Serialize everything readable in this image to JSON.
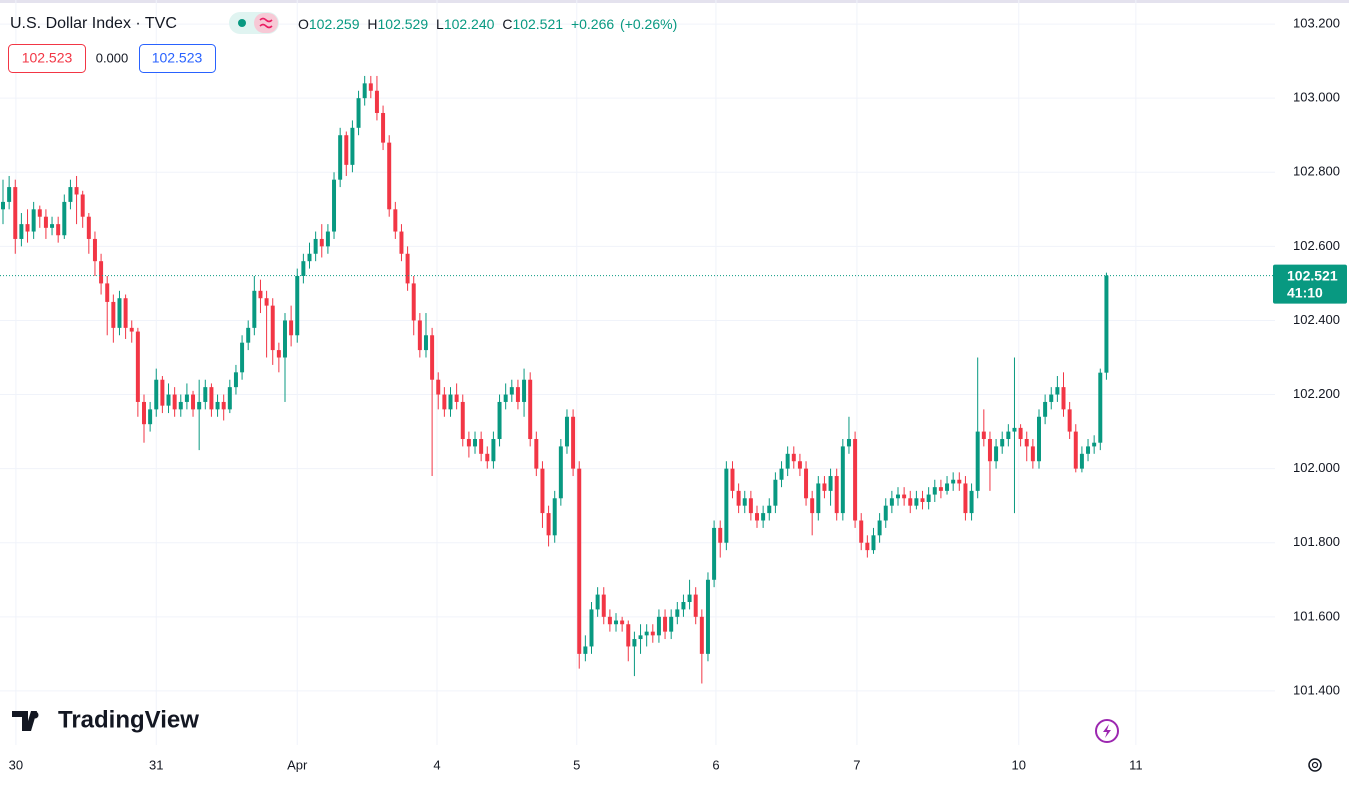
{
  "header": {
    "symbol": "U.S. Dollar Index · TVC",
    "ohlc_labels": [
      "O",
      "H",
      "L",
      "C"
    ],
    "ohlc_values": [
      "102.259",
      "102.529",
      "102.240",
      "102.521"
    ],
    "change": "+0.266",
    "change_pct": "(+0.26%)",
    "bid": "102.523",
    "spread": "0.000",
    "ask": "102.523",
    "countdown": "41:10",
    "logo": "TradingView"
  },
  "chart_data": {
    "type": "candlestick",
    "up_color": "#089981",
    "down_color": "#f23645",
    "grid": true,
    "ylim": [
      101.254,
      103.265
    ],
    "xlim": [
      -0.49,
      207.5
    ],
    "yticks": [
      {
        "value": 101.4,
        "label": "101.400"
      },
      {
        "value": 101.6,
        "label": "101.600"
      },
      {
        "value": 101.8,
        "label": "101.800"
      },
      {
        "value": 102.0,
        "label": "102.000"
      },
      {
        "value": 102.2,
        "label": "102.200"
      },
      {
        "value": 102.4,
        "label": "102.400"
      },
      {
        "value": 102.6,
        "label": "102.600"
      },
      {
        "value": 102.8,
        "label": "102.800"
      },
      {
        "value": 103.0,
        "label": "103.000"
      },
      {
        "value": 103.2,
        "label": "103.200"
      }
    ],
    "xticks": [
      {
        "value": 2.1,
        "label": "30"
      },
      {
        "value": 25,
        "label": "31"
      },
      {
        "value": 48,
        "label": "Apr"
      },
      {
        "value": 70.8,
        "label": "4"
      },
      {
        "value": 93.6,
        "label": "5"
      },
      {
        "value": 116.3,
        "label": "6"
      },
      {
        "value": 139.3,
        "label": "7"
      },
      {
        "value": 165.7,
        "label": "10"
      },
      {
        "value": 184.8,
        "label": "11"
      }
    ],
    "open": [
      102.7,
      102.72,
      102.76,
      102.62,
      102.66,
      102.64,
      102.7,
      102.68,
      102.65,
      102.66,
      102.63,
      102.72,
      102.76,
      102.74,
      102.68,
      102.62,
      102.56,
      102.5,
      102.45,
      102.38,
      102.46,
      102.38,
      102.37,
      102.18,
      102.12,
      102.16,
      102.24,
      102.17,
      102.2,
      102.16,
      102.18,
      102.2,
      102.16,
      102.18,
      102.22,
      102.16,
      102.18,
      102.16,
      102.22,
      102.26,
      102.34,
      102.38,
      102.48,
      102.46,
      102.44,
      102.32,
      102.3,
      102.4,
      102.36,
      102.52,
      102.56,
      102.58,
      102.62,
      102.6,
      102.64,
      102.78,
      102.9,
      102.82,
      102.92,
      103.0,
      103.04,
      103.02,
      102.96,
      102.88,
      102.7,
      102.64,
      102.58,
      102.5,
      102.4,
      102.32,
      102.36,
      102.24,
      102.2,
      102.16,
      102.2,
      102.18,
      102.08,
      102.06,
      102.08,
      102.04,
      102.02,
      102.08,
      102.18,
      102.2,
      102.22,
      102.18,
      102.24,
      102.08,
      102.0,
      101.88,
      101.82,
      101.92,
      102.06,
      102.14,
      102.0,
      101.5,
      101.52,
      101.62,
      101.66,
      101.6,
      101.58,
      101.59,
      101.58,
      101.52,
      101.54,
      101.55,
      101.56,
      101.55,
      101.6,
      101.56,
      101.6,
      101.62,
      101.64,
      101.66,
      101.6,
      101.5,
      101.7,
      101.84,
      101.8,
      102.0,
      101.94,
      101.9,
      101.92,
      101.88,
      101.86,
      101.88,
      101.9,
      101.97,
      102.0,
      102.04,
      102.02,
      102.0,
      101.92,
      101.88,
      101.96,
      101.94,
      101.98,
      101.88,
      102.06,
      102.08,
      101.86,
      101.8,
      101.78,
      101.82,
      101.86,
      101.9,
      101.92,
      101.93,
      101.92,
      101.9,
      101.92,
      101.91,
      101.93,
      101.95,
      101.94,
      101.96,
      101.97,
      101.96,
      101.88,
      101.94,
      102.1,
      102.08,
      102.02,
      102.06,
      102.08,
      102.1,
      102.11,
      102.08,
      102.06,
      102.02,
      102.14,
      102.18,
      102.2,
      102.22,
      102.16,
      102.1,
      102.0,
      102.04,
      102.06,
      102.07,
      102.259
    ],
    "high": [
      102.78,
      102.79,
      102.78,
      102.69,
      102.7,
      102.72,
      102.71,
      102.7,
      102.68,
      102.68,
      102.74,
      102.78,
      102.79,
      102.75,
      102.69,
      102.64,
      102.58,
      102.52,
      102.47,
      102.48,
      102.47,
      102.4,
      102.38,
      102.2,
      102.18,
      102.27,
      102.25,
      102.23,
      102.22,
      102.2,
      102.23,
      102.21,
      102.24,
      102.24,
      102.23,
      102.2,
      102.2,
      102.24,
      102.28,
      102.36,
      102.4,
      102.52,
      102.51,
      102.48,
      102.46,
      102.34,
      102.42,
      102.44,
      102.54,
      102.58,
      102.61,
      102.64,
      102.66,
      102.66,
      102.8,
      102.92,
      102.91,
      102.94,
      103.02,
      103.06,
      103.06,
      103.06,
      102.98,
      102.9,
      102.72,
      102.66,
      102.6,
      102.52,
      102.42,
      102.42,
      102.38,
      102.26,
      102.22,
      102.22,
      102.23,
      102.2,
      102.1,
      102.1,
      102.1,
      102.06,
      102.1,
      102.2,
      102.23,
      102.24,
      102.24,
      102.27,
      102.26,
      102.1,
      102.02,
      101.9,
      101.94,
      102.08,
      102.16,
      102.16,
      102.02,
      101.55,
      101.64,
      101.68,
      101.68,
      101.62,
      101.61,
      101.6,
      101.59,
      101.56,
      101.58,
      101.58,
      101.58,
      101.62,
      101.62,
      101.62,
      101.64,
      101.66,
      101.7,
      101.68,
      101.62,
      101.72,
      101.86,
      101.86,
      102.02,
      102.02,
      101.96,
      101.94,
      101.94,
      101.9,
      101.9,
      101.92,
      101.99,
      102.02,
      102.06,
      102.06,
      102.04,
      102.02,
      101.94,
      101.98,
      101.98,
      102.0,
      102.0,
      102.08,
      102.14,
      102.1,
      101.88,
      101.82,
      101.84,
      101.88,
      101.92,
      101.94,
      101.95,
      101.95,
      101.94,
      101.94,
      101.94,
      101.95,
      101.97,
      101.97,
      101.98,
      101.99,
      101.99,
      101.98,
      101.96,
      102.3,
      102.16,
      102.1,
      102.08,
      102.1,
      102.12,
      102.3,
      102.12,
      102.1,
      102.08,
      102.16,
      102.2,
      102.22,
      102.25,
      102.26,
      102.18,
      102.12,
      102.06,
      102.08,
      102.09,
      102.27,
      102.529
    ],
    "low": [
      102.66,
      102.7,
      102.58,
      102.6,
      102.61,
      102.62,
      102.65,
      102.62,
      102.63,
      102.61,
      102.62,
      102.7,
      102.66,
      102.65,
      102.58,
      102.52,
      102.47,
      102.36,
      102.34,
      102.36,
      102.35,
      102.34,
      102.14,
      102.07,
      102.1,
      102.14,
      102.15,
      102.15,
      102.14,
      102.14,
      102.16,
      102.14,
      102.05,
      102.16,
      102.14,
      102.14,
      102.13,
      102.15,
      102.2,
      102.24,
      102.32,
      102.36,
      102.42,
      102.3,
      102.28,
      102.26,
      102.18,
      102.33,
      102.34,
      102.5,
      102.54,
      102.56,
      102.57,
      102.58,
      102.62,
      102.76,
      102.79,
      102.8,
      102.9,
      102.98,
      103.0,
      102.94,
      102.86,
      102.68,
      102.62,
      102.56,
      102.48,
      102.36,
      102.3,
      102.3,
      101.98,
      102.16,
      102.14,
      102.14,
      102.16,
      102.06,
      102.03,
      102.04,
      102.02,
      102.0,
      102.0,
      102.06,
      102.16,
      102.18,
      102.16,
      102.14,
      102.06,
      101.98,
      101.84,
      101.79,
      101.8,
      101.9,
      102.04,
      101.98,
      101.46,
      101.48,
      101.5,
      101.6,
      101.58,
      101.56,
      101.56,
      101.56,
      101.48,
      101.44,
      101.5,
      101.52,
      101.53,
      101.53,
      101.54,
      101.54,
      101.58,
      101.6,
      101.62,
      101.58,
      101.42,
      101.48,
      101.68,
      101.76,
      101.78,
      101.92,
      101.88,
      101.88,
      101.86,
      101.84,
      101.84,
      101.86,
      101.88,
      101.95,
      101.98,
      102.0,
      101.98,
      101.9,
      101.82,
      101.86,
      101.92,
      101.9,
      101.86,
      101.86,
      102.04,
      101.84,
      101.78,
      101.76,
      101.77,
      101.8,
      101.84,
      101.88,
      101.9,
      101.9,
      101.88,
      101.89,
      101.89,
      101.89,
      101.91,
      101.92,
      101.93,
      101.94,
      101.94,
      101.86,
      101.86,
      101.92,
      102.06,
      101.94,
      102.0,
      102.04,
      102.06,
      101.88,
      102.06,
      102.02,
      102.0,
      102.0,
      102.12,
      102.16,
      102.18,
      102.14,
      102.08,
      101.99,
      101.99,
      102.02,
      102.04,
      102.05,
      102.24
    ],
    "close": [
      102.72,
      102.76,
      102.62,
      102.66,
      102.64,
      102.7,
      102.68,
      102.65,
      102.66,
      102.63,
      102.72,
      102.76,
      102.74,
      102.68,
      102.62,
      102.56,
      102.5,
      102.45,
      102.38,
      102.46,
      102.38,
      102.37,
      102.18,
      102.12,
      102.16,
      102.24,
      102.17,
      102.2,
      102.16,
      102.18,
      102.2,
      102.16,
      102.18,
      102.22,
      102.16,
      102.18,
      102.16,
      102.22,
      102.26,
      102.34,
      102.38,
      102.48,
      102.46,
      102.44,
      102.32,
      102.3,
      102.4,
      102.36,
      102.52,
      102.56,
      102.58,
      102.62,
      102.6,
      102.64,
      102.78,
      102.9,
      102.82,
      102.92,
      103.0,
      103.04,
      103.02,
      102.96,
      102.88,
      102.7,
      102.64,
      102.58,
      102.5,
      102.4,
      102.32,
      102.36,
      102.24,
      102.2,
      102.16,
      102.2,
      102.18,
      102.08,
      102.06,
      102.08,
      102.04,
      102.02,
      102.08,
      102.18,
      102.2,
      102.22,
      102.18,
      102.24,
      102.08,
      102.0,
      101.88,
      101.82,
      101.92,
      102.06,
      102.14,
      102.0,
      101.5,
      101.52,
      101.62,
      101.66,
      101.6,
      101.58,
      101.59,
      101.58,
      101.52,
      101.54,
      101.55,
      101.56,
      101.55,
      101.6,
      101.56,
      101.6,
      101.62,
      101.64,
      101.66,
      101.6,
      101.5,
      101.7,
      101.84,
      101.8,
      102.0,
      101.94,
      101.9,
      101.92,
      101.88,
      101.86,
      101.88,
      101.9,
      101.97,
      102.0,
      102.04,
      102.02,
      102.0,
      101.92,
      101.88,
      101.96,
      101.94,
      101.98,
      101.88,
      102.06,
      102.08,
      101.86,
      101.8,
      101.78,
      101.82,
      101.86,
      101.9,
      101.92,
      101.93,
      101.92,
      101.9,
      101.92,
      101.91,
      101.93,
      101.95,
      101.94,
      101.96,
      101.97,
      101.96,
      101.88,
      101.94,
      102.1,
      102.08,
      102.02,
      102.06,
      102.08,
      102.1,
      102.11,
      102.08,
      102.06,
      102.02,
      102.14,
      102.18,
      102.2,
      102.22,
      102.16,
      102.1,
      102.0,
      102.04,
      102.06,
      102.07,
      102.259,
      102.521
    ]
  }
}
